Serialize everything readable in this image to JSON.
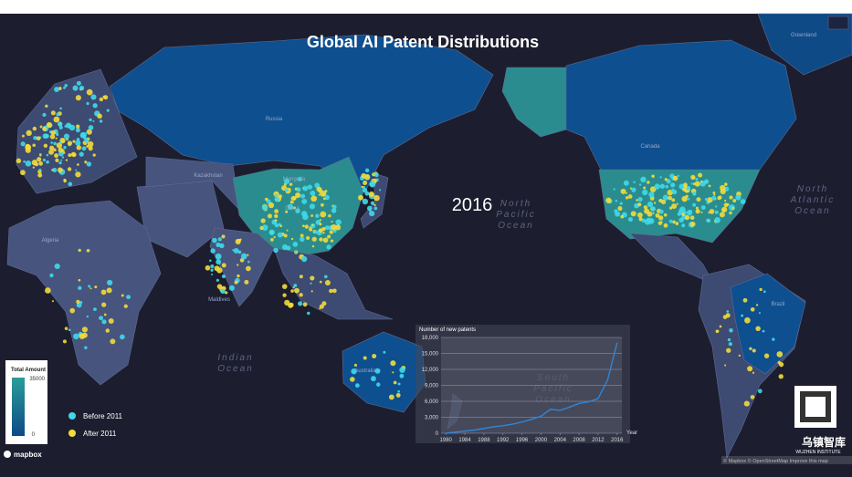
{
  "title": "Global AI Patent Distributions",
  "year_label": "2016",
  "ocean_labels": [
    [
      "North",
      "Pacific",
      "Ocean"
    ],
    [
      "South",
      "Pacific",
      "Ocean"
    ],
    [
      "Indian",
      "Ocean"
    ],
    [
      "North",
      "Atlantic",
      "Ocean"
    ]
  ],
  "country_labels": [
    "Russia",
    "China",
    "Mongolia",
    "Kazakhstan",
    "Canada",
    "Greenland",
    "Brazil",
    "Australia",
    "Maldives",
    "Algeria"
  ],
  "legend": {
    "title": "Total Amount",
    "max": 35000,
    "min": 0,
    "items": [
      {
        "label": "Before 2011",
        "color": "#3fd9ea"
      },
      {
        "label": "After 2011",
        "color": "#f2dc3a"
      }
    ]
  },
  "chart_data": {
    "type": "line",
    "title": "Number of new patents",
    "x_label": "Year",
    "x": [
      1980,
      1982,
      1984,
      1986,
      1988,
      1990,
      1992,
      1994,
      1996,
      1998,
      2000,
      2002,
      2004,
      2006,
      2008,
      2010,
      2012,
      2014,
      2016
    ],
    "values": [
      0,
      200,
      400,
      600,
      900,
      1200,
      1400,
      1700,
      2100,
      2600,
      3200,
      4500,
      4300,
      4900,
      5600,
      5900,
      6500,
      10000,
      17000
    ],
    "color": "#2f86d6",
    "xlim": [
      1979,
      2017
    ],
    "xticks": [
      1980,
      1984,
      1988,
      1992,
      1996,
      2000,
      2004,
      2008,
      2012,
      2016
    ],
    "ylim": [
      0,
      18000
    ],
    "yticks": [
      0,
      {
        "value": 3000,
        "label": "3,000"
      },
      {
        "value": 6000,
        "label": "6,000"
      },
      {
        "value": 9000,
        "label": "9,000"
      },
      {
        "value": 12000,
        "label": "12,000"
      },
      {
        "value": 15000,
        "label": "15,000"
      },
      {
        "value": 18000,
        "label": "18,000"
      }
    ],
    "grid": true
  },
  "logo": "mapbox",
  "attribution": "© Mapbox © OpenStreetMap Improve this map",
  "brand": {
    "cn": "乌镇智库",
    "en": "WUZHEN INSTITUTE"
  }
}
